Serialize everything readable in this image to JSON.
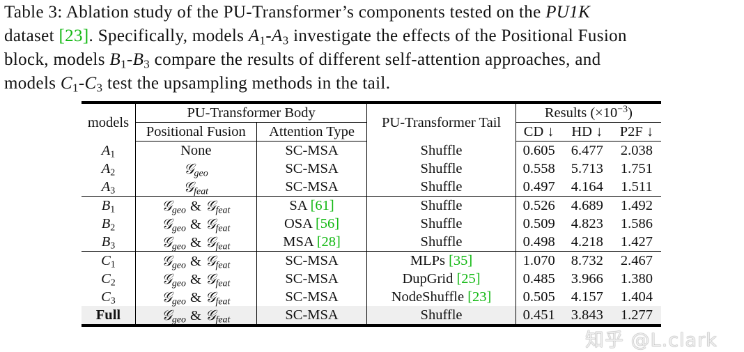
{
  "caption": {
    "line1": [
      "Table 3: Ablation study of the PU-Transformer’s components tested on the ",
      "PU1K"
    ],
    "line2": [
      "dataset ",
      "[23]",
      ". Specifically, models ",
      "A",
      "1",
      "-",
      "A",
      "3",
      " investigate the effects of the Positional Fusion"
    ],
    "line3": [
      "block, models ",
      "B",
      "1",
      "-",
      "B",
      "3",
      " compare the results of different self-attention approaches, and"
    ],
    "line4": [
      "models ",
      "C",
      "1",
      "-",
      "C",
      "3",
      " test the upsampling methods in the tail."
    ]
  },
  "header": {
    "models": "models",
    "body": "PU-Transformer Body",
    "positional_fusion": "Positional Fusion",
    "attention_type": "Attention Type",
    "tail": "PU-Transformer Tail",
    "results": "Results (×10",
    "results_exp": "−3",
    "results_close": ")",
    "cd": "CD ↓",
    "hd": "HD ↓",
    "p2f": "P2F ↓"
  },
  "pf_symbol": "𝒢",
  "pf_joiner": "&",
  "cite_color": "#12b812",
  "rows": [
    {
      "model": "A",
      "sub": "1",
      "pf": "None",
      "attn": "SC-MSA",
      "attn_cite": "",
      "tail": "Shuffle",
      "tail_cite": "",
      "cd": "0.605",
      "hd": "6.477",
      "p2f": "2.038"
    },
    {
      "model": "A",
      "sub": "2",
      "pf_subs": [
        "geo"
      ],
      "attn": "SC-MSA",
      "attn_cite": "",
      "tail": "Shuffle",
      "tail_cite": "",
      "cd": "0.558",
      "hd": "5.713",
      "p2f": "1.751"
    },
    {
      "model": "A",
      "sub": "3",
      "pf_subs": [
        "feat"
      ],
      "attn": "SC-MSA",
      "attn_cite": "",
      "tail": "Shuffle",
      "tail_cite": "",
      "cd": "0.497",
      "hd": "4.164",
      "p2f": "1.511"
    },
    {
      "model": "B",
      "sub": "1",
      "pf_subs": [
        "geo",
        "feat"
      ],
      "attn": "SA ",
      "attn_cite": "[61]",
      "tail": "Shuffle",
      "tail_cite": "",
      "cd": "0.526",
      "hd": "4.689",
      "p2f": "1.492",
      "group": true
    },
    {
      "model": "B",
      "sub": "2",
      "pf_subs": [
        "geo",
        "feat"
      ],
      "attn": "OSA ",
      "attn_cite": "[56]",
      "tail": "Shuffle",
      "tail_cite": "",
      "cd": "0.509",
      "hd": "4.823",
      "p2f": "1.586"
    },
    {
      "model": "B",
      "sub": "3",
      "pf_subs": [
        "geo",
        "feat"
      ],
      "attn": "MSA ",
      "attn_cite": "[28]",
      "tail": "Shuffle",
      "tail_cite": "",
      "cd": "0.498",
      "hd": "4.218",
      "p2f": "1.427"
    },
    {
      "model": "C",
      "sub": "1",
      "pf_subs": [
        "geo",
        "feat"
      ],
      "attn": "SC-MSA",
      "attn_cite": "",
      "tail": "MLPs ",
      "tail_cite": "[35]",
      "cd": "1.070",
      "hd": "8.732",
      "p2f": "2.467",
      "group": true
    },
    {
      "model": "C",
      "sub": "2",
      "pf_subs": [
        "geo",
        "feat"
      ],
      "attn": "SC-MSA",
      "attn_cite": "",
      "tail": "DupGrid ",
      "tail_cite": "[25]",
      "cd": "0.485",
      "hd": "3.966",
      "p2f": "1.380"
    },
    {
      "model": "C",
      "sub": "3",
      "pf_subs": [
        "geo",
        "feat"
      ],
      "attn": "SC-MSA",
      "attn_cite": "",
      "tail": "NodeShuffle ",
      "tail_cite": "[23]",
      "cd": "0.505",
      "hd": "4.157",
      "p2f": "1.404"
    },
    {
      "model": "Full",
      "bold": true,
      "pf_subs": [
        "geo",
        "feat"
      ],
      "attn": "SC-MSA",
      "attn_cite": "",
      "tail": "Shuffle",
      "tail_cite": "",
      "cd": "0.451",
      "hd": "3.843",
      "p2f": "1.277",
      "last": true
    }
  ],
  "watermark": "知乎 @L.clark"
}
